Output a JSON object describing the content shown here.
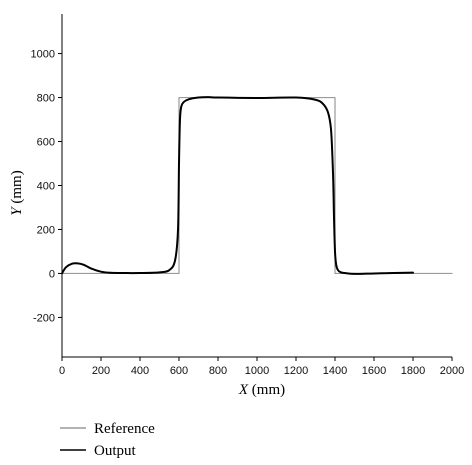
{
  "chart_data": {
    "type": "line",
    "title": "",
    "xlabel": {
      "var": "X",
      "unit": "(mm)"
    },
    "ylabel": {
      "var": "Y",
      "unit": "(mm)"
    },
    "xlim": [
      0,
      2000
    ],
    "ylim": [
      -380,
      1180
    ],
    "xticks": [
      0,
      200,
      400,
      600,
      800,
      1000,
      1200,
      1400,
      1600,
      1800,
      2000
    ],
    "yticks": [
      -200,
      0,
      200,
      400,
      600,
      800,
      1000
    ],
    "grid": false,
    "legend_position": "bottom-left, below plot",
    "series": [
      {
        "name": "Reference",
        "color": "#9a9a9a",
        "x": [
          0,
          600,
          600,
          1400,
          1400,
          2000
        ],
        "y": [
          0,
          0,
          800,
          800,
          0,
          0
        ]
      },
      {
        "name": "Output",
        "color": "#000000",
        "x": [
          0,
          20,
          50,
          80,
          110,
          150,
          200,
          250,
          300,
          400,
          500,
          550,
          580,
          595,
          600,
          605,
          612,
          625,
          650,
          700,
          750,
          800,
          1000,
          1200,
          1300,
          1340,
          1365,
          1380,
          1390,
          1395,
          1400,
          1406,
          1415,
          1430,
          1450,
          1500,
          1600,
          1700,
          1800
        ],
        "y": [
          0,
          28,
          44,
          46,
          40,
          22,
          8,
          3,
          2,
          2,
          5,
          15,
          60,
          200,
          500,
          700,
          760,
          780,
          792,
          800,
          802,
          800,
          798,
          800,
          790,
          770,
          730,
          650,
          450,
          250,
          100,
          40,
          15,
          5,
          2,
          -2,
          0,
          2,
          4
        ]
      }
    ]
  }
}
